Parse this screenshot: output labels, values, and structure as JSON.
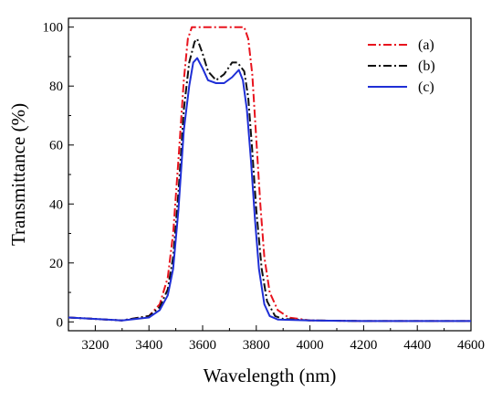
{
  "chart_data": {
    "type": "line",
    "title": "",
    "xlabel": "Wavelength (nm)",
    "ylabel": "Transmittance (%)",
    "xlim": [
      3100,
      4600
    ],
    "ylim": [
      -3,
      103
    ],
    "xticks": [
      3200,
      3400,
      3600,
      3800,
      4000,
      4200,
      4400,
      4600
    ],
    "yticks": [
      0,
      20,
      40,
      60,
      80,
      100
    ],
    "grid": false,
    "legend_position": "top-right",
    "series": [
      {
        "name": "(a)",
        "color": "#e8141e",
        "dash": "dashdot",
        "x": [
          3100,
          3300,
          3400,
          3440,
          3470,
          3490,
          3510,
          3530,
          3545,
          3560,
          3600,
          3700,
          3755,
          3770,
          3785,
          3800,
          3815,
          3830,
          3850,
          3880,
          3920,
          4000,
          4200,
          4600
        ],
        "y": [
          1.5,
          0.5,
          2,
          6,
          15,
          30,
          55,
          82,
          96,
          100,
          100,
          100,
          100,
          96,
          84,
          62,
          40,
          22,
          10,
          4,
          1.5,
          0.5,
          0.3,
          0.3
        ]
      },
      {
        "name": "(b)",
        "color": "#111111",
        "dash": "dashdot",
        "x": [
          3100,
          3300,
          3400,
          3440,
          3470,
          3490,
          3510,
          3530,
          3550,
          3570,
          3580,
          3600,
          3620,
          3650,
          3680,
          3710,
          3730,
          3755,
          3770,
          3785,
          3800,
          3820,
          3840,
          3870,
          3900,
          4000,
          4200,
          4600
        ],
        "y": [
          1.5,
          0.5,
          2,
          5,
          11,
          22,
          44,
          72,
          88,
          95,
          96,
          91,
          85,
          82,
          84,
          88,
          88,
          85,
          76,
          58,
          38,
          18,
          7,
          2,
          1,
          0.5,
          0.3,
          0.3
        ]
      },
      {
        "name": "(c)",
        "color": "#1f2fd6",
        "dash": "solid",
        "x": [
          3100,
          3300,
          3400,
          3440,
          3470,
          3490,
          3510,
          3530,
          3550,
          3565,
          3580,
          3600,
          3620,
          3650,
          3680,
          3710,
          3735,
          3750,
          3765,
          3780,
          3795,
          3810,
          3830,
          3850,
          3880,
          4000,
          4200,
          4600
        ],
        "y": [
          1.5,
          0.5,
          1.5,
          4,
          9,
          18,
          38,
          65,
          80,
          88,
          89.5,
          86,
          82,
          81,
          81,
          83,
          85.5,
          82,
          72,
          55,
          35,
          18,
          6,
          2,
          0.8,
          0.5,
          0.3,
          0.3
        ]
      }
    ]
  }
}
